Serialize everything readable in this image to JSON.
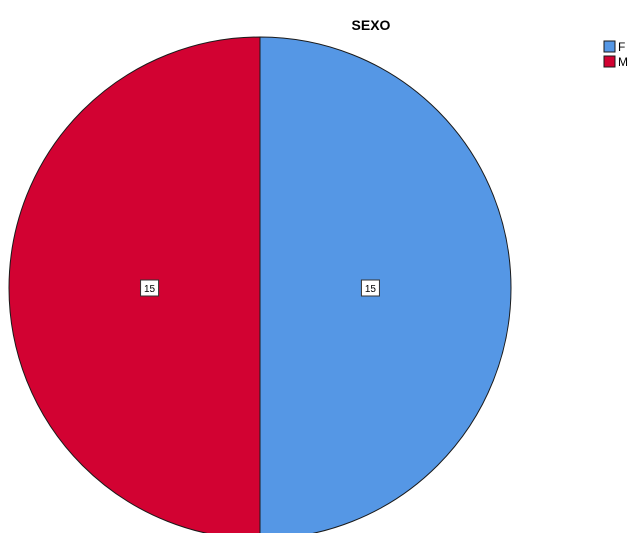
{
  "chart_data": {
    "type": "pie",
    "title": "SEXO",
    "categories": [
      "F",
      "M"
    ],
    "values": [
      15,
      15
    ],
    "colors": [
      "#5597E5",
      "#D20232"
    ],
    "data_labels": [
      "15",
      "15"
    ],
    "legend": {
      "placement": "top-right",
      "entries": [
        "F",
        "M"
      ]
    },
    "start_angle_deg": 0,
    "direction": "clockwise"
  }
}
